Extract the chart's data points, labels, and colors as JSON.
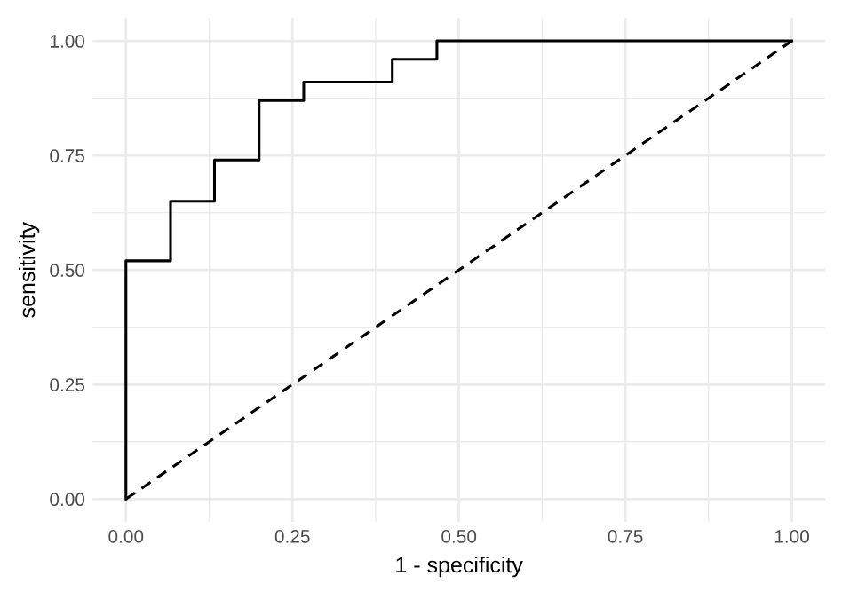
{
  "chart_data": {
    "type": "step",
    "xlabel": "1 - specificity",
    "ylabel": "sensitivity",
    "series": [
      {
        "color": "#000000",
        "line_style": "solid",
        "x": [
          0,
          0,
          0.067,
          0.133,
          0.2,
          0.267,
          0.4,
          0.467,
          1.0
        ],
        "values": [
          0,
          0.52,
          0.65,
          0.74,
          0.87,
          0.91,
          0.96,
          1.0,
          1.0
        ]
      },
      {
        "type": "line",
        "color": "#000000",
        "line_style": "dashed",
        "x": [
          0,
          1
        ],
        "values": [
          0,
          1
        ]
      }
    ],
    "xlim": [
      -0.05,
      1.05
    ],
    "ylim": [
      -0.05,
      1.05
    ],
    "xticks": [
      {
        "value": 0,
        "label": "0.00"
      },
      {
        "value": 0.125,
        "label": null
      },
      {
        "value": 0.25,
        "label": "0.25"
      },
      {
        "value": 0.375,
        "label": null
      },
      {
        "value": 0.5,
        "label": "0.50"
      },
      {
        "value": 0.625,
        "label": null
      },
      {
        "value": 0.75,
        "label": "0.75"
      },
      {
        "value": 0.875,
        "label": null
      },
      {
        "value": 1,
        "label": "1.00"
      }
    ],
    "yticks": [
      {
        "value": 0,
        "label": "0.00"
      },
      {
        "value": 0.125,
        "label": null
      },
      {
        "value": 0.25,
        "label": "0.25"
      },
      {
        "value": 0.375,
        "label": null
      },
      {
        "value": 0.5,
        "label": "0.50"
      },
      {
        "value": 0.625,
        "label": null
      },
      {
        "value": 0.75,
        "label": "0.75"
      },
      {
        "value": 0.875,
        "label": null
      },
      {
        "value": 1,
        "label": "1.00"
      }
    ],
    "grid": true,
    "legend": false
  }
}
